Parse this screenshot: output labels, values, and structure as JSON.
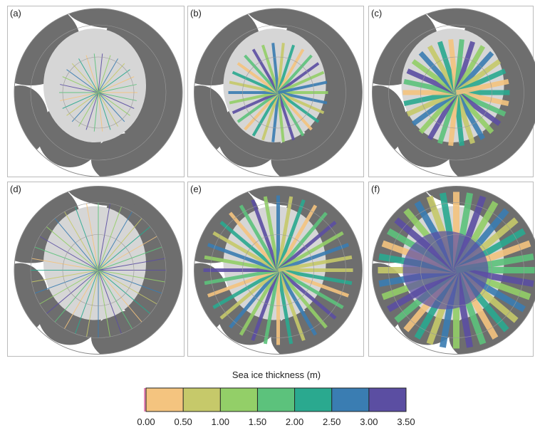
{
  "panels": [
    {
      "label": "(a)"
    },
    {
      "label": "(b)"
    },
    {
      "label": "(c)"
    },
    {
      "label": "(d)"
    },
    {
      "label": "(e)"
    },
    {
      "label": "(f)"
    }
  ],
  "colorbar": {
    "title": "Sea ice thickness (m)",
    "range": [
      0,
      3.5
    ],
    "ticks": [
      {
        "value": 0,
        "label": "0.00"
      },
      {
        "value": 0.5,
        "label": "0.50"
      },
      {
        "value": 1,
        "label": "1.00"
      },
      {
        "value": 1.5,
        "label": "1.50"
      },
      {
        "value": 2,
        "label": "2.00"
      },
      {
        "value": 2.5,
        "label": "2.50"
      },
      {
        "value": 3,
        "label": "3.00"
      },
      {
        "value": 3.5,
        "label": "3.50"
      }
    ],
    "colors": [
      "#f4c47f",
      "#c6c96a",
      "#93cf68",
      "#5cc27c",
      "#2aa98f",
      "#3a7db2",
      "#5b4ea2"
    ]
  }
}
